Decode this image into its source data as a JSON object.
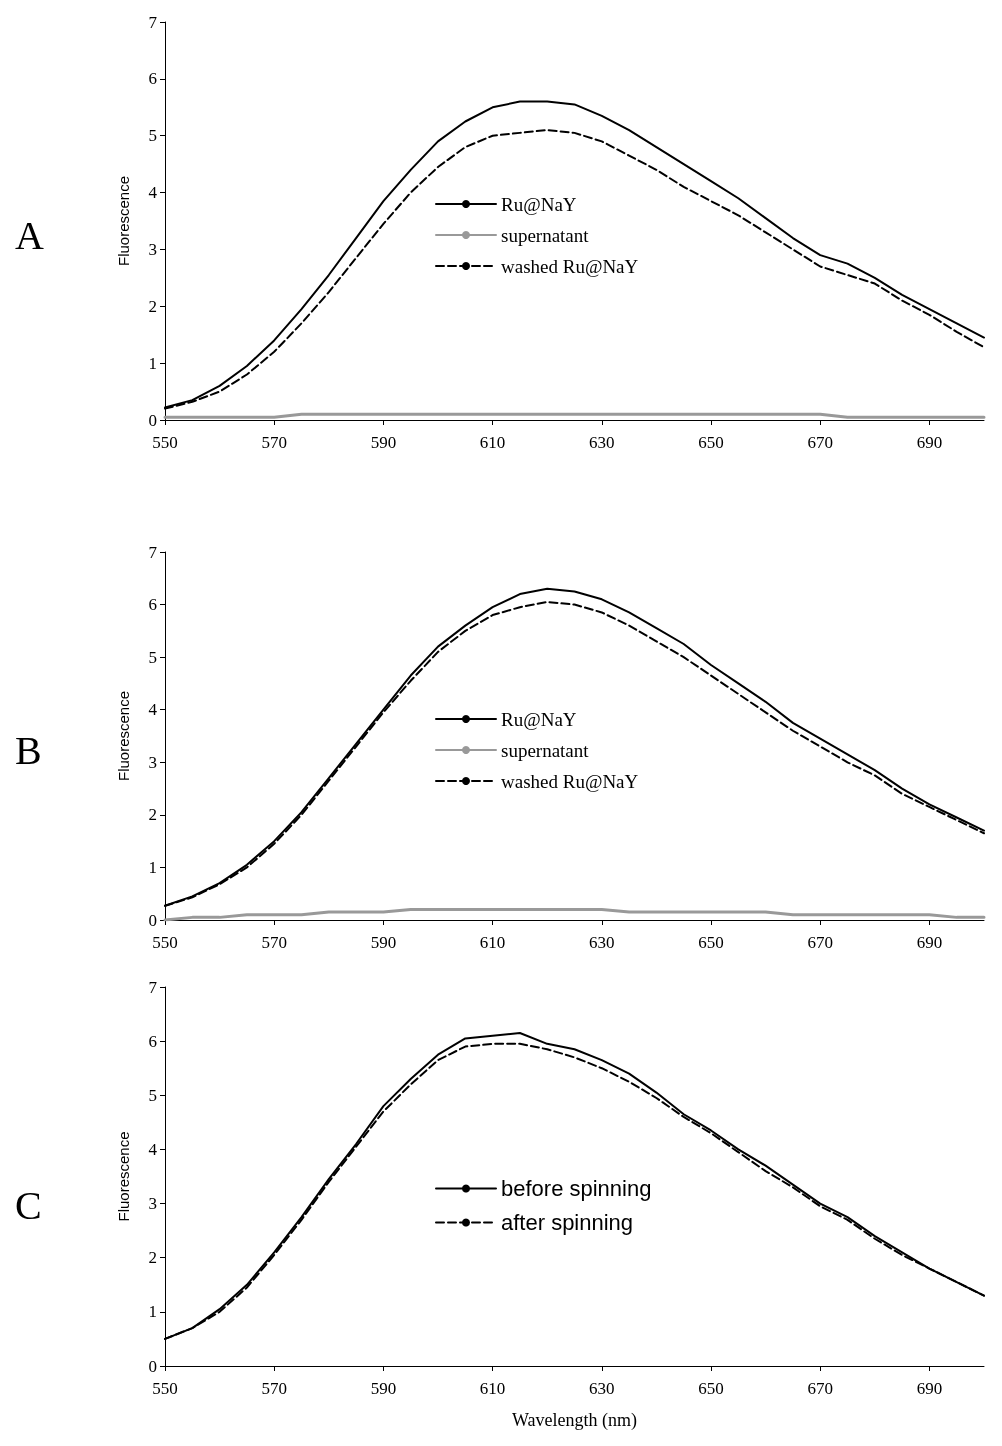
{
  "chart_data": [
    {
      "type": "line",
      "title": "A",
      "ylabel": "Fluorescence",
      "x": [
        550,
        555,
        560,
        565,
        570,
        575,
        580,
        585,
        590,
        595,
        600,
        605,
        610,
        615,
        620,
        625,
        630,
        635,
        640,
        645,
        650,
        655,
        660,
        665,
        670,
        675,
        680,
        685,
        690,
        695,
        700
      ],
      "xlim": [
        550,
        700
      ],
      "xticks": [
        550,
        570,
        590,
        610,
        630,
        650,
        670,
        690
      ],
      "ylim": [
        0,
        7
      ],
      "yticks": [
        0,
        1,
        2,
        3,
        4,
        5,
        6,
        7
      ],
      "legend": "center",
      "marker": "none",
      "series": [
        {
          "name": "Ru@NaY",
          "color": "#000000",
          "line_style": "solid",
          "values": [
            0.22,
            0.35,
            0.6,
            0.95,
            1.4,
            1.95,
            2.55,
            3.2,
            3.85,
            4.4,
            4.9,
            5.25,
            5.5,
            5.6,
            5.6,
            5.55,
            5.35,
            5.1,
            4.8,
            4.5,
            4.2,
            3.9,
            3.55,
            3.2,
            2.9,
            2.75,
            2.5,
            2.2,
            1.95,
            1.7,
            1.45
          ]
        },
        {
          "name": "supernatant",
          "color": "#999999",
          "line_style": "solid",
          "values": [
            0.05,
            0.05,
            0.05,
            0.05,
            0.05,
            0.1,
            0.1,
            0.1,
            0.1,
            0.1,
            0.1,
            0.1,
            0.1,
            0.1,
            0.1,
            0.1,
            0.1,
            0.1,
            0.1,
            0.1,
            0.1,
            0.1,
            0.1,
            0.1,
            0.1,
            0.05,
            0.05,
            0.05,
            0.05,
            0.05,
            0.05
          ]
        },
        {
          "name": "washed Ru@NaY",
          "color": "#000000",
          "line_style": "dashed",
          "values": [
            0.2,
            0.32,
            0.5,
            0.8,
            1.2,
            1.7,
            2.25,
            2.85,
            3.45,
            4.0,
            4.45,
            4.8,
            5.0,
            5.05,
            5.1,
            5.05,
            4.9,
            4.65,
            4.4,
            4.1,
            3.85,
            3.6,
            3.3,
            3.0,
            2.7,
            2.55,
            2.4,
            2.1,
            1.85,
            1.55,
            1.28
          ]
        }
      ]
    },
    {
      "type": "line",
      "title": "B",
      "ylabel": "Fluorescence",
      "x": [
        550,
        555,
        560,
        565,
        570,
        575,
        580,
        585,
        590,
        595,
        600,
        605,
        610,
        615,
        620,
        625,
        630,
        635,
        640,
        645,
        650,
        655,
        660,
        665,
        670,
        675,
        680,
        685,
        690,
        695,
        700
      ],
      "xlim": [
        550,
        700
      ],
      "xticks": [
        550,
        570,
        590,
        610,
        630,
        650,
        670,
        690
      ],
      "ylim": [
        0,
        7
      ],
      "yticks": [
        0,
        1,
        2,
        3,
        4,
        5,
        6,
        7
      ],
      "legend": "center",
      "marker": "none",
      "series": [
        {
          "name": "Ru@NaY",
          "color": "#000000",
          "line_style": "solid",
          "values": [
            0.27,
            0.45,
            0.7,
            1.05,
            1.5,
            2.05,
            2.7,
            3.35,
            4.0,
            4.65,
            5.2,
            5.6,
            5.95,
            6.2,
            6.3,
            6.25,
            6.1,
            5.85,
            5.55,
            5.25,
            4.85,
            4.5,
            4.15,
            3.75,
            3.45,
            3.15,
            2.85,
            2.5,
            2.2,
            1.95,
            1.7
          ]
        },
        {
          "name": "supernatant",
          "color": "#999999",
          "line_style": "solid",
          "values": [
            0.0,
            0.05,
            0.05,
            0.1,
            0.1,
            0.1,
            0.15,
            0.15,
            0.15,
            0.2,
            0.2,
            0.2,
            0.2,
            0.2,
            0.2,
            0.2,
            0.2,
            0.15,
            0.15,
            0.15,
            0.15,
            0.15,
            0.15,
            0.1,
            0.1,
            0.1,
            0.1,
            0.1,
            0.1,
            0.05,
            0.05
          ]
        },
        {
          "name": "washed Ru@NaY",
          "color": "#000000",
          "line_style": "dashed",
          "values": [
            0.27,
            0.43,
            0.68,
            1.0,
            1.45,
            2.0,
            2.65,
            3.3,
            3.95,
            4.55,
            5.1,
            5.5,
            5.8,
            5.95,
            6.05,
            6.0,
            5.85,
            5.6,
            5.3,
            5.0,
            4.65,
            4.3,
            3.95,
            3.6,
            3.3,
            3.0,
            2.75,
            2.4,
            2.15,
            1.9,
            1.65
          ]
        }
      ]
    },
    {
      "type": "line",
      "title": "C",
      "xlabel": "Wavelength (nm)",
      "ylabel": "Fluorescence",
      "x": [
        550,
        555,
        560,
        565,
        570,
        575,
        580,
        585,
        590,
        595,
        600,
        605,
        610,
        615,
        620,
        625,
        630,
        635,
        640,
        645,
        650,
        655,
        660,
        665,
        670,
        675,
        680,
        685,
        690,
        695,
        700
      ],
      "xlim": [
        550,
        700
      ],
      "xticks": [
        550,
        570,
        590,
        610,
        630,
        650,
        670,
        690
      ],
      "ylim": [
        0,
        7
      ],
      "yticks": [
        0,
        1,
        2,
        3,
        4,
        5,
        6,
        7
      ],
      "legend": "center",
      "marker": "none",
      "series": [
        {
          "name": "before spinning",
          "color": "#000000",
          "line_style": "solid",
          "values": [
            0.5,
            0.7,
            1.05,
            1.5,
            2.1,
            2.75,
            3.45,
            4.1,
            4.8,
            5.3,
            5.75,
            6.05,
            6.1,
            6.15,
            5.95,
            5.85,
            5.65,
            5.4,
            5.05,
            4.65,
            4.35,
            4.0,
            3.7,
            3.35,
            3.0,
            2.75,
            2.4,
            2.1,
            1.8,
            1.55,
            1.3
          ]
        },
        {
          "name": "after spinning",
          "color": "#000000",
          "line_style": "dashed",
          "values": [
            0.5,
            0.7,
            1.0,
            1.45,
            2.05,
            2.7,
            3.4,
            4.05,
            4.7,
            5.2,
            5.65,
            5.9,
            5.95,
            5.95,
            5.85,
            5.7,
            5.5,
            5.25,
            4.95,
            4.6,
            4.3,
            3.95,
            3.6,
            3.3,
            2.95,
            2.7,
            2.35,
            2.05,
            1.8,
            1.55,
            1.3
          ]
        }
      ]
    }
  ]
}
